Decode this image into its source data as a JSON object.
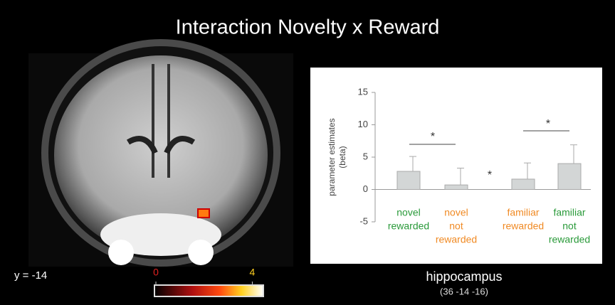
{
  "title": "Interaction Novelty x Reward",
  "brain": {
    "slice_label": "y = -14",
    "colorbar_lim": [
      0,
      4.4
    ],
    "colorbar_ticks": [
      0,
      4
    ]
  },
  "chart_data": {
    "type": "bar",
    "ylabel": [
      "parameter estimates",
      "(beta)"
    ],
    "categories": [
      [
        "novel",
        "rewarded"
      ],
      [
        "novel",
        "not",
        "rewarded"
      ],
      [
        "familiar",
        "rewarded"
      ],
      [
        "familiar",
        "not",
        "rewarded"
      ]
    ],
    "category_colors": [
      "#2a9a3a",
      "#f08a24",
      "#f08a24",
      "#2a9a3a"
    ],
    "values": [
      2.8,
      0.7,
      1.6,
      4.0
    ],
    "errors": [
      2.3,
      2.6,
      2.5,
      2.9
    ],
    "color": "#d3d6d6",
    "ylim": [
      -5,
      15
    ],
    "yticks": [
      -5,
      0,
      5,
      10,
      15
    ],
    "significance": [
      "*",
      "*",
      "*"
    ]
  },
  "caption": {
    "region": "hippocampus",
    "coordinates": "(36 -14 -16)"
  }
}
